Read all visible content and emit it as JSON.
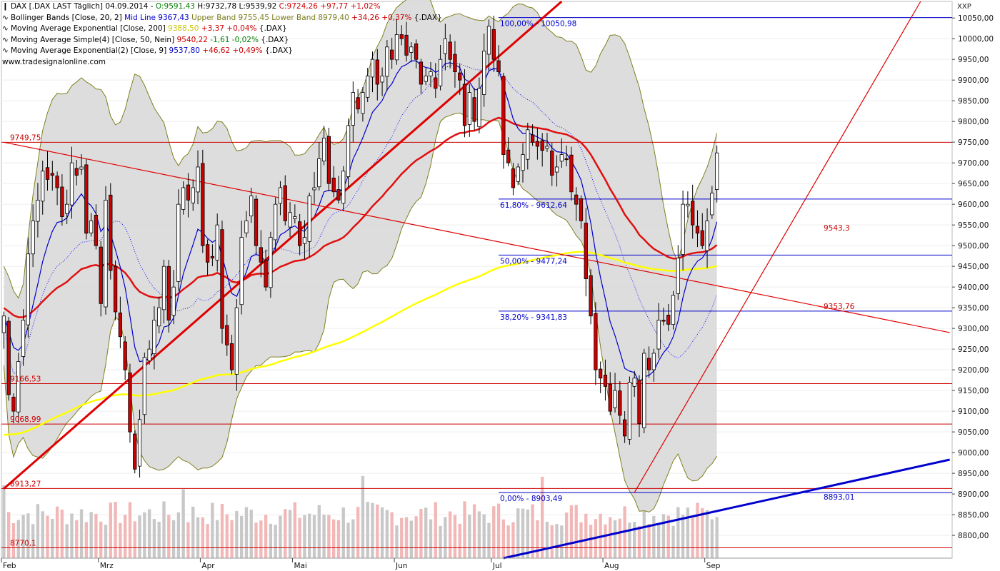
{
  "legend": {
    "line1": {
      "mark": "❙",
      "a": "DAX [.DAX LAST Täglich] 04.09.2014 - ",
      "o": "O:9591,43",
      "h": " H:9732,78",
      "l": " L:9539,92",
      "c": " C:9724,26",
      "chg": " +97,77 +1,02%"
    },
    "line2": {
      "mark": "∿",
      "a": "Bollinger Bands [Close, 20, 2] ",
      "mid": "Mid Line 9367,43",
      "up": " Upper Band 9755,45",
      "low": " Lower Band 8979,40",
      "chg": " +34,26 +0,37%",
      "sym": " {.DAX}"
    },
    "line3": {
      "mark": "∿",
      "a": "Moving Average Exponential [Close, 200] ",
      "val": "9388,50",
      "chg": " +3,37 +0,04%",
      "sym": " {.DAX}"
    },
    "line4": {
      "mark": "∿",
      "a": "Moving Average Simple(4) [Close, 50, Nein] ",
      "val": "9540,22",
      "chg": " -1,61 -0,02%",
      "sym": " {.DAX}"
    },
    "line5": {
      "mark": "∿",
      "a": "Moving Average Exponential(2) [Close, 9] ",
      "val": "9537,80",
      "chg": " +46,62 +0,49%",
      "sym": " {.DAX}"
    },
    "website": "www.tradesignalonline.com"
  },
  "currency": "XXP",
  "colors": {
    "up": "#ffffff",
    "down": "#cc0000",
    "bb_fill": "#d9d9d9",
    "bb_line": "#808020",
    "ema9": "#0000cc",
    "sma50": "#1a1aff",
    "ema50": "#e01010",
    "ema200": "#ffff00",
    "trend": "#e00000",
    "blue_trend": "#0000cc",
    "hline": "#cc0000",
    "fib": "#0000cc",
    "vol": "#f2b8b8",
    "vol_up": "#c8c8c8"
  },
  "chart_data": {
    "type": "candlestick",
    "title": "DAX [.DAX LAST Täglich]",
    "ylim": [
      8745,
      10090
    ],
    "y_ticks": [
      8800,
      8850,
      8900,
      8950,
      9000,
      9050,
      9100,
      9150,
      9200,
      9250,
      9300,
      9350,
      9400,
      9450,
      9500,
      9550,
      9600,
      9650,
      9700,
      9750,
      9800,
      9850,
      9900,
      9950,
      10000,
      10050
    ],
    "y_tick_labels": [
      "8800,00",
      "8850,00",
      "8900,00",
      "8950,00",
      "9000,00",
      "9050,00",
      "9100,00",
      "9150,00",
      "9200,00",
      "9250,00",
      "9300,00",
      "9350,00",
      "9400,00",
      "9450,00",
      "9500,00",
      "9550,00",
      "9600,00",
      "9650,00",
      "9700,00",
      "9750,00",
      "9800,00",
      "9850,00",
      "9900,00",
      "9950,00",
      "10000,00",
      "10050,00"
    ],
    "x_labels": [
      {
        "day": 1,
        "label": "Feb"
      },
      {
        "day": 21,
        "label": "Mrz"
      },
      {
        "day": 42,
        "label": "Apr"
      },
      {
        "day": 61,
        "label": "Mai"
      },
      {
        "day": 82,
        "label": "Jun"
      },
      {
        "day": 102,
        "label": "Jul"
      },
      {
        "day": 125,
        "label": "Aug"
      },
      {
        "day": 146,
        "label": "Sep"
      }
    ],
    "closes": [
      9330,
      9140,
      9100,
      9220,
      9320,
      9480,
      9560,
      9610,
      9680,
      9660,
      9670,
      9640,
      9570,
      9600,
      9700,
      9670,
      9690,
      9530,
      9560,
      9500,
      9360,
      9610,
      9440,
      9340,
      9280,
      9200,
      9050,
      8960,
      9080,
      9230,
      9250,
      9320,
      9350,
      9450,
      9320,
      9400,
      9600,
      9640,
      9610,
      9640,
      9690,
      9500,
      9460,
      9470,
      9550,
      9300,
      9260,
      9200,
      9350,
      9520,
      9560,
      9620,
      9500,
      9460,
      9400,
      9520,
      9600,
      9640,
      9560,
      9580,
      9570,
      9500,
      9520,
      9620,
      9640,
      9710,
      9760,
      9650,
      9630,
      9610,
      9680,
      9790,
      9870,
      9830,
      9870,
      9910,
      9950,
      9890,
      9910,
      9980,
      9950,
      10010,
      10000,
      9960,
      9980,
      9950,
      9890,
      9910,
      9920,
      9880,
      9950,
      10000,
      9950,
      9920,
      9900,
      9790,
      9870,
      9800,
      9880,
      9970,
      10030,
      9950,
      9920,
      9720,
      9700,
      9640,
      9690,
      9720,
      9780,
      9750,
      9740,
      9730,
      9740,
      9670,
      9690,
      9720,
      9710,
      9630,
      9600,
      9560,
      9420,
      9330,
      9200,
      9180,
      9160,
      9100,
      9150,
      9090,
      9040,
      9170,
      9180,
      9070,
      9240,
      9200,
      9240,
      9320,
      9320,
      9310,
      9380,
      9470,
      9600,
      9600,
      9550,
      9530,
      9500,
      9560,
      9627,
      9724
    ],
    "levels": [
      {
        "value": 9749.75,
        "label": "9749,75"
      },
      {
        "value": 9166.53,
        "label": "9166,53"
      },
      {
        "value": 9068.99,
        "label": "9068,99"
      },
      {
        "value": 8913.27,
        "label": "8913,27"
      },
      {
        "value": 8770.1,
        "label": "8770,1"
      }
    ],
    "fib_levels": [
      {
        "value": 10050.98,
        "label": "100,00% - 10050,98"
      },
      {
        "value": 9612.64,
        "label": "61,80% - 9612,64"
      },
      {
        "value": 9477.24,
        "label": "50,00% - 9477,24"
      },
      {
        "value": 9341.83,
        "label": "38,20% - 9341,83"
      },
      {
        "value": 8903.49,
        "label": "0,00% - 8903,49"
      }
    ],
    "annotations": [
      {
        "value": 9543.3,
        "label": "9543,3"
      },
      {
        "value": 9353.76,
        "label": "9353,76"
      },
      {
        "value": 8893.01,
        "label": "8893,01"
      }
    ],
    "trendlines": [
      {
        "name": "red-uptrend",
        "from": [
          1,
          8913
        ],
        "to": [
          116,
          10090
        ]
      },
      {
        "name": "red-downtrend",
        "from": [
          1,
          9749.75
        ],
        "to": [
          196,
          9290
        ]
      },
      {
        "name": "red-steep-uptrend",
        "from": [
          131,
          8903.49
        ],
        "to": [
          190,
          10090
        ]
      },
      {
        "name": "blue-uptrend",
        "from": [
          104,
          8745
        ],
        "to": [
          196,
          8983
        ]
      }
    ]
  }
}
